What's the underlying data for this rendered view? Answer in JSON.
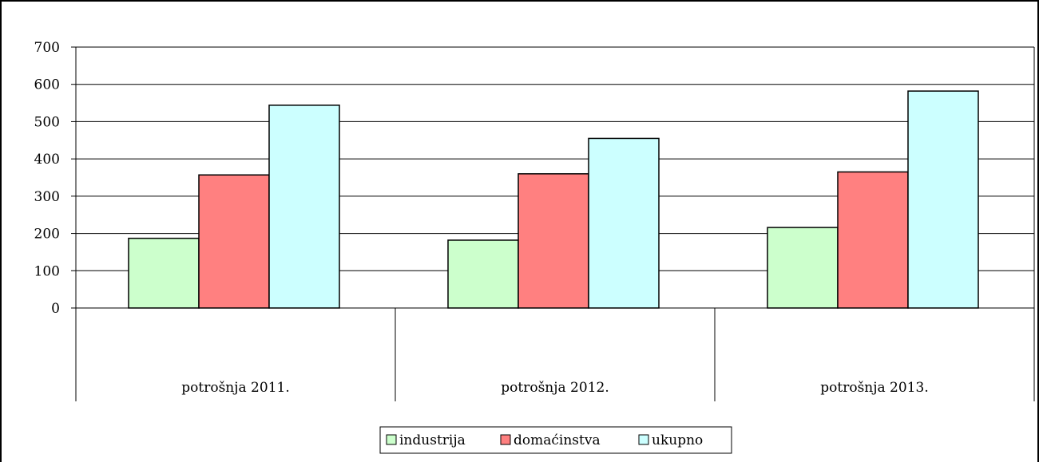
{
  "chart_data": {
    "type": "bar",
    "categories": [
      "potrošnja 2011.",
      "potrošnja 2012.",
      "potrošnja 2013."
    ],
    "series": [
      {
        "name": "industrija",
        "color": "#ccffcc",
        "values": [
          187,
          182,
          216
        ]
      },
      {
        "name": "domaćinstva",
        "color": "#ff8080",
        "values": [
          357,
          360,
          365
        ]
      },
      {
        "name": "ukupno",
        "color": "#ccffff",
        "values": [
          544,
          455,
          582
        ]
      }
    ],
    "ylim": [
      0,
      700
    ],
    "yticks": [
      0,
      100,
      200,
      300,
      400,
      500,
      600,
      700
    ],
    "grid": true,
    "legend_position": "bottom"
  }
}
